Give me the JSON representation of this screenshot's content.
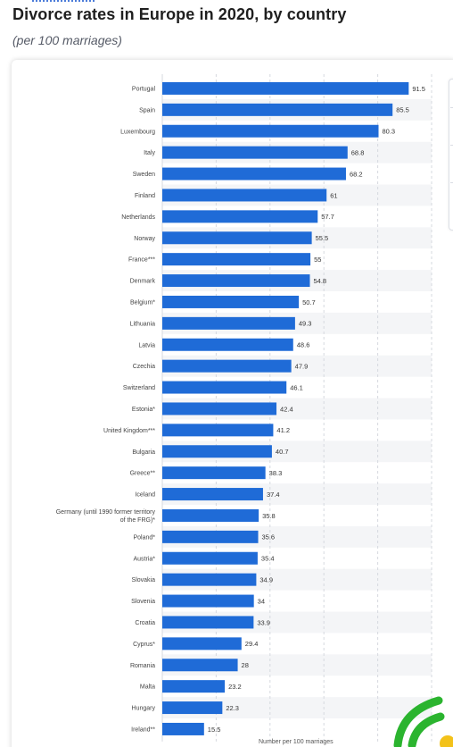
{
  "header": {
    "title": "Divorce rates in Europe in 2020, by country",
    "subtitle": "(per 100 marriages)"
  },
  "colors": {
    "bar": "#1f6bd7",
    "title": "#1f1f1f",
    "logo_green": "#2bb42f",
    "logo_yellow": "#f3c21a"
  },
  "icons": {
    "brand": "statista-logo-icon"
  },
  "chart_data": {
    "type": "bar",
    "orientation": "horizontal",
    "title": "Divorce rates in Europe in 2020, by country",
    "subtitle": "(per 100 marriages)",
    "xlabel": "Number per 100 marriages",
    "ylabel": "",
    "xlim": [
      0,
      100
    ],
    "grid": true,
    "categories": [
      "Portugal",
      "Spain",
      "Luxembourg",
      "Italy",
      "Sweden",
      "Finland",
      "Netherlands",
      "Norway",
      "France***",
      "Denmark",
      "Belgium*",
      "Lithuania",
      "Latvia",
      "Czechia",
      "Switzerland",
      "Estonia*",
      "United Kingdom***",
      "Bulgaria",
      "Greece**",
      "Iceland",
      "Germany (until 1990 former territory of the FRG)*",
      "Poland*",
      "Austria*",
      "Slovakia",
      "Slovenia",
      "Croatia",
      "Cyprus*",
      "Romania",
      "Malta",
      "Hungary",
      "Ireland**"
    ],
    "values": [
      91.5,
      85.5,
      80.3,
      68.8,
      68.2,
      61,
      57.7,
      55.5,
      55,
      54.8,
      50.7,
      49.3,
      48.6,
      47.9,
      46.1,
      42.4,
      41.2,
      40.7,
      38.3,
      37.4,
      35.8,
      35.6,
      35.4,
      34.9,
      34,
      33.9,
      29.4,
      28,
      23.2,
      22.3,
      15.5
    ]
  }
}
